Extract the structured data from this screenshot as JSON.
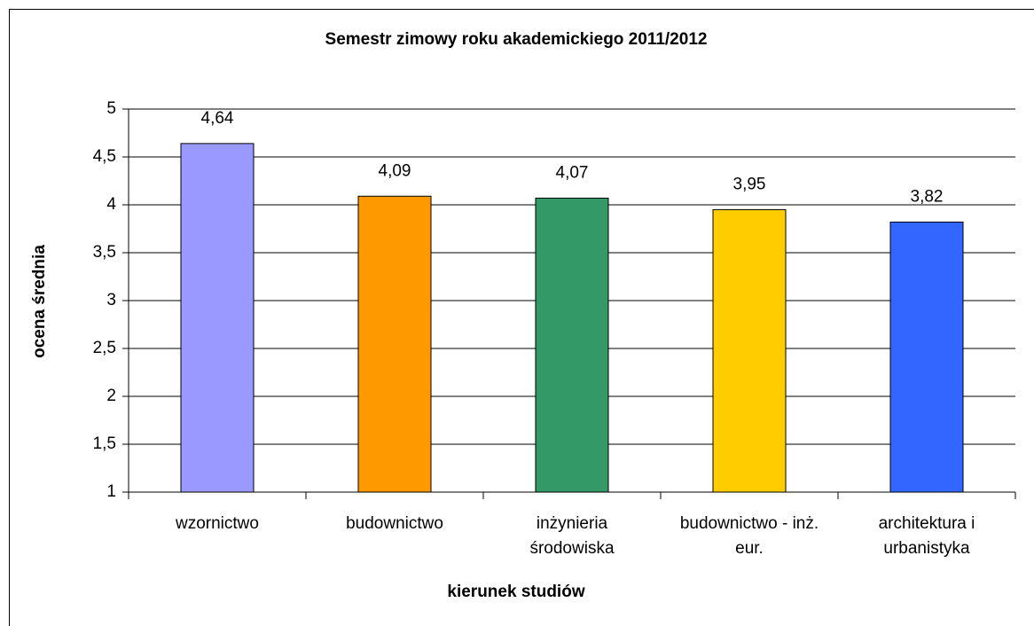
{
  "chart_data": {
    "type": "bar",
    "title": "Semestr zimowy roku akademickiego 2011/2012",
    "x_label": "kierunek studiów",
    "y_label": "ocena średnia",
    "categories": [
      "wzornictwo",
      "budownictwo",
      "inżynieria środowiska",
      "budownictwo - inż. eur.",
      "architektura i urbanistyka"
    ],
    "values": [
      4.64,
      4.09,
      4.07,
      3.95,
      3.82
    ],
    "value_labels": [
      "4,64",
      "4,09",
      "4,07",
      "3,95",
      "3,82"
    ],
    "colors": [
      "#9999ff",
      "#ff9900",
      "#339966",
      "#ffcc00",
      "#3366ff"
    ],
    "ylim": [
      1,
      5
    ],
    "yticks": [
      1,
      {
        "value": 1.5,
        "label": "1,5"
      },
      2,
      {
        "value": 2.5,
        "label": "2,5"
      },
      3,
      {
        "value": 3.5,
        "label": "3,5"
      },
      4,
      {
        "value": 4.5,
        "label": "4,5"
      },
      5
    ],
    "grid": true
  }
}
